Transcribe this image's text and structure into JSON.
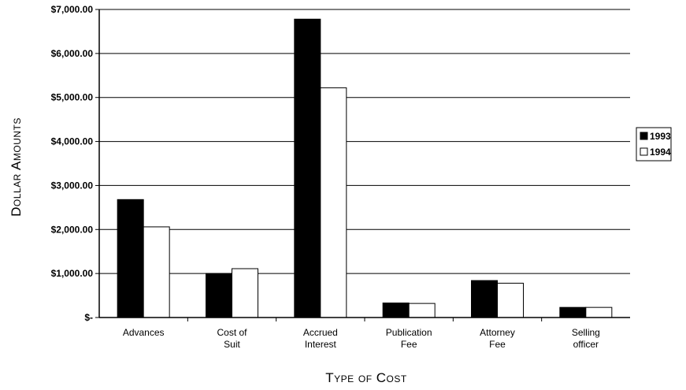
{
  "chart_data": {
    "type": "bar",
    "categories": [
      [
        "Advances"
      ],
      [
        "Cost of",
        "Suit"
      ],
      [
        "Accrued",
        "Interest"
      ],
      [
        "Publication",
        "Fee"
      ],
      [
        "Attorney",
        "Fee"
      ],
      [
        "Selling",
        "officer"
      ]
    ],
    "series": [
      {
        "name": "1993",
        "values": [
          2680,
          1000,
          6780,
          330,
          840,
          230
        ]
      },
      {
        "name": "1994",
        "values": [
          2060,
          1110,
          5220,
          320,
          780,
          230
        ]
      }
    ],
    "series_colors": [
      "#000000",
      "#ffffff"
    ],
    "ylim": [
      0,
      7000
    ],
    "yticks": [
      0,
      1000,
      2000,
      3000,
      4000,
      5000,
      6000,
      7000
    ],
    "ytick_labels": [
      "$-",
      "$1,000.00",
      "$2,000.00",
      "$3,000.00",
      "$4,000.00",
      "$5,000.00",
      "$6,000.00",
      "$7,000.00"
    ],
    "xlabel": "Type of Cost",
    "ylabel": "Dollar Amounts",
    "grid": true,
    "legend_position": "right"
  }
}
